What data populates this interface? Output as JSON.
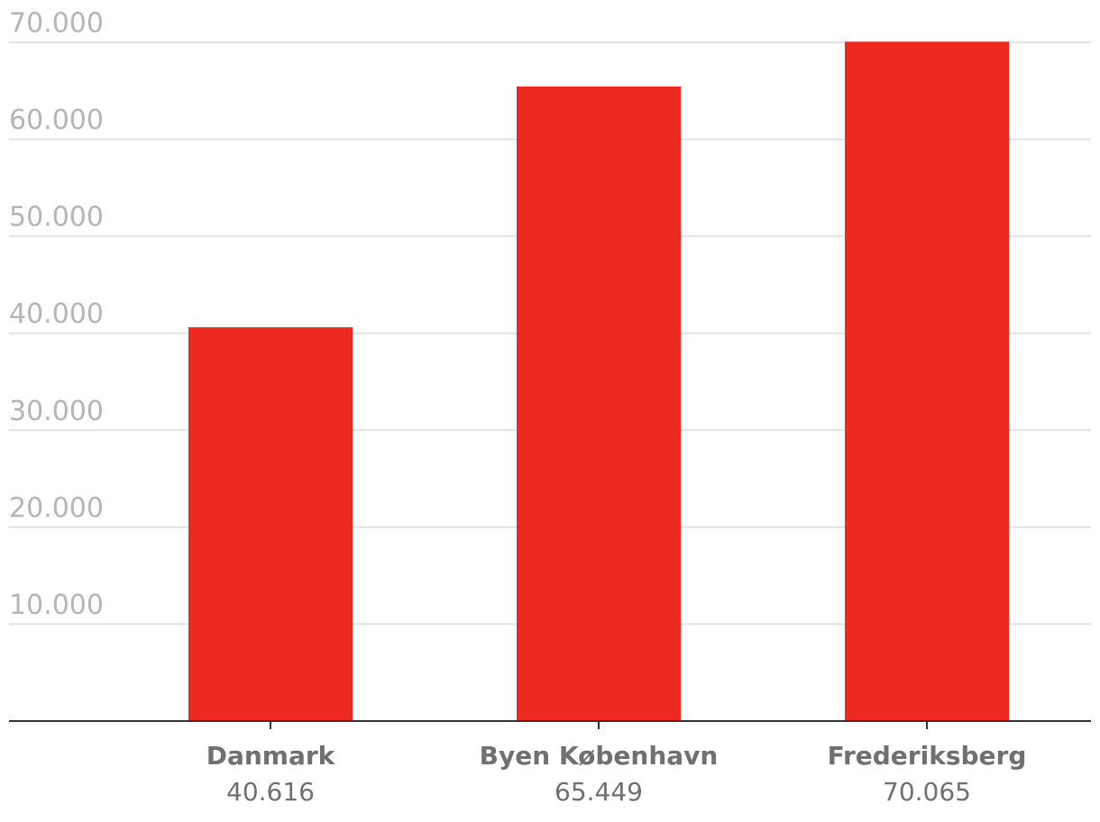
{
  "chart_data": {
    "type": "bar",
    "categories": [
      "Danmark",
      "Byen København",
      "Frederiksberg"
    ],
    "values": [
      40616,
      65449,
      70065
    ],
    "value_labels": [
      "40.616",
      "65.449",
      "70.065"
    ],
    "color": "#ee2a20",
    "ylim": [
      0,
      70000
    ],
    "yticks": [
      {
        "value": 10000,
        "label": "10.000"
      },
      {
        "value": 20000,
        "label": "20.000"
      },
      {
        "value": 30000,
        "label": "30.000"
      },
      {
        "value": 40000,
        "label": "40.000"
      },
      {
        "value": 50000,
        "label": "50.000"
      },
      {
        "value": 60000,
        "label": "60.000"
      },
      {
        "value": 70000,
        "label": "70.000"
      }
    ],
    "grid": true
  }
}
